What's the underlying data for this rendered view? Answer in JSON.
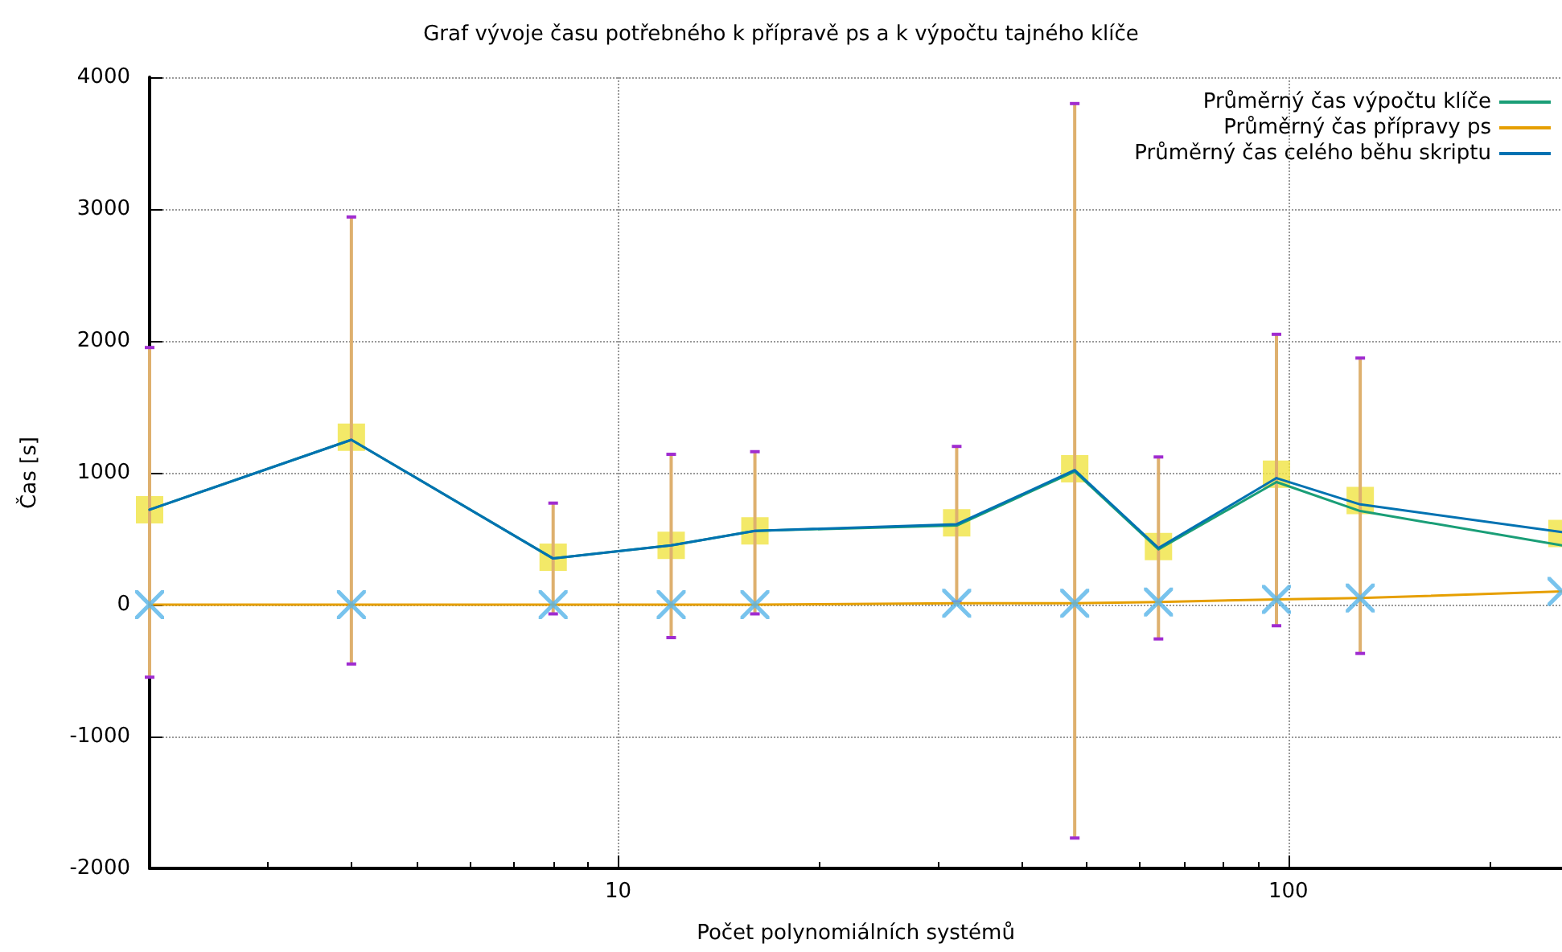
{
  "chart_data": {
    "type": "line",
    "title": "Graf vývoje času potřebného k přípravě ps a k výpočtu tajného klíče",
    "xlabel": "Počet polynomiálních systémů",
    "ylabel": "Čas [s]",
    "log": "x",
    "xlim": [
      2,
      256
    ],
    "xticks": [
      10,
      100
    ],
    "ylim": [
      -2000,
      4000
    ],
    "yticks": [
      -2000,
      -1000,
      0,
      1000,
      2000,
      3000,
      4000
    ],
    "grid": true,
    "legend": "top right",
    "x": [
      2,
      4,
      8,
      12,
      16,
      32,
      48,
      64,
      96,
      128,
      256
    ],
    "series": [
      {
        "name": "Průměrný čas výpočtu klíče",
        "color": "#1a9e77",
        "marker": "none",
        "values": [
          720,
          1250,
          350,
          450,
          560,
          600,
          1010,
          420,
          930,
          710,
          450
        ]
      },
      {
        "name": "Průměrný čas přípravy ps",
        "color": "#e69f00",
        "marker": "none",
        "values": [
          0,
          0,
          0,
          0,
          0,
          10,
          10,
          20,
          40,
          50,
          100
        ]
      },
      {
        "name": "Průměrný čas celého běhu skriptu",
        "color": "#0072b2",
        "marker": "none",
        "values": [
          720,
          1250,
          350,
          450,
          560,
          610,
          1020,
          430,
          960,
          760,
          550
        ]
      },
      {
        "type": "scatter",
        "color": "#f0e442",
        "marker": "square",
        "values": [
          720,
          1270,
          360,
          450,
          560,
          620,
          1030,
          440,
          990,
          790,
          540
        ],
        "errors": [
          [
            -550,
            1950
          ],
          [
            -450,
            2940
          ],
          [
            -70,
            770
          ],
          [
            -250,
            1140
          ],
          [
            -70,
            1160
          ],
          [
            20,
            1200
          ],
          [
            -1770,
            3800
          ],
          [
            -260,
            1120
          ],
          [
            -160,
            2050
          ],
          [
            -370,
            1870
          ],
          null
        ]
      },
      {
        "type": "scatter",
        "color": "#56b4e9",
        "marker": "cross",
        "values": [
          0,
          0,
          0,
          0,
          0,
          10,
          10,
          20,
          40,
          50,
          100
        ]
      }
    ]
  }
}
